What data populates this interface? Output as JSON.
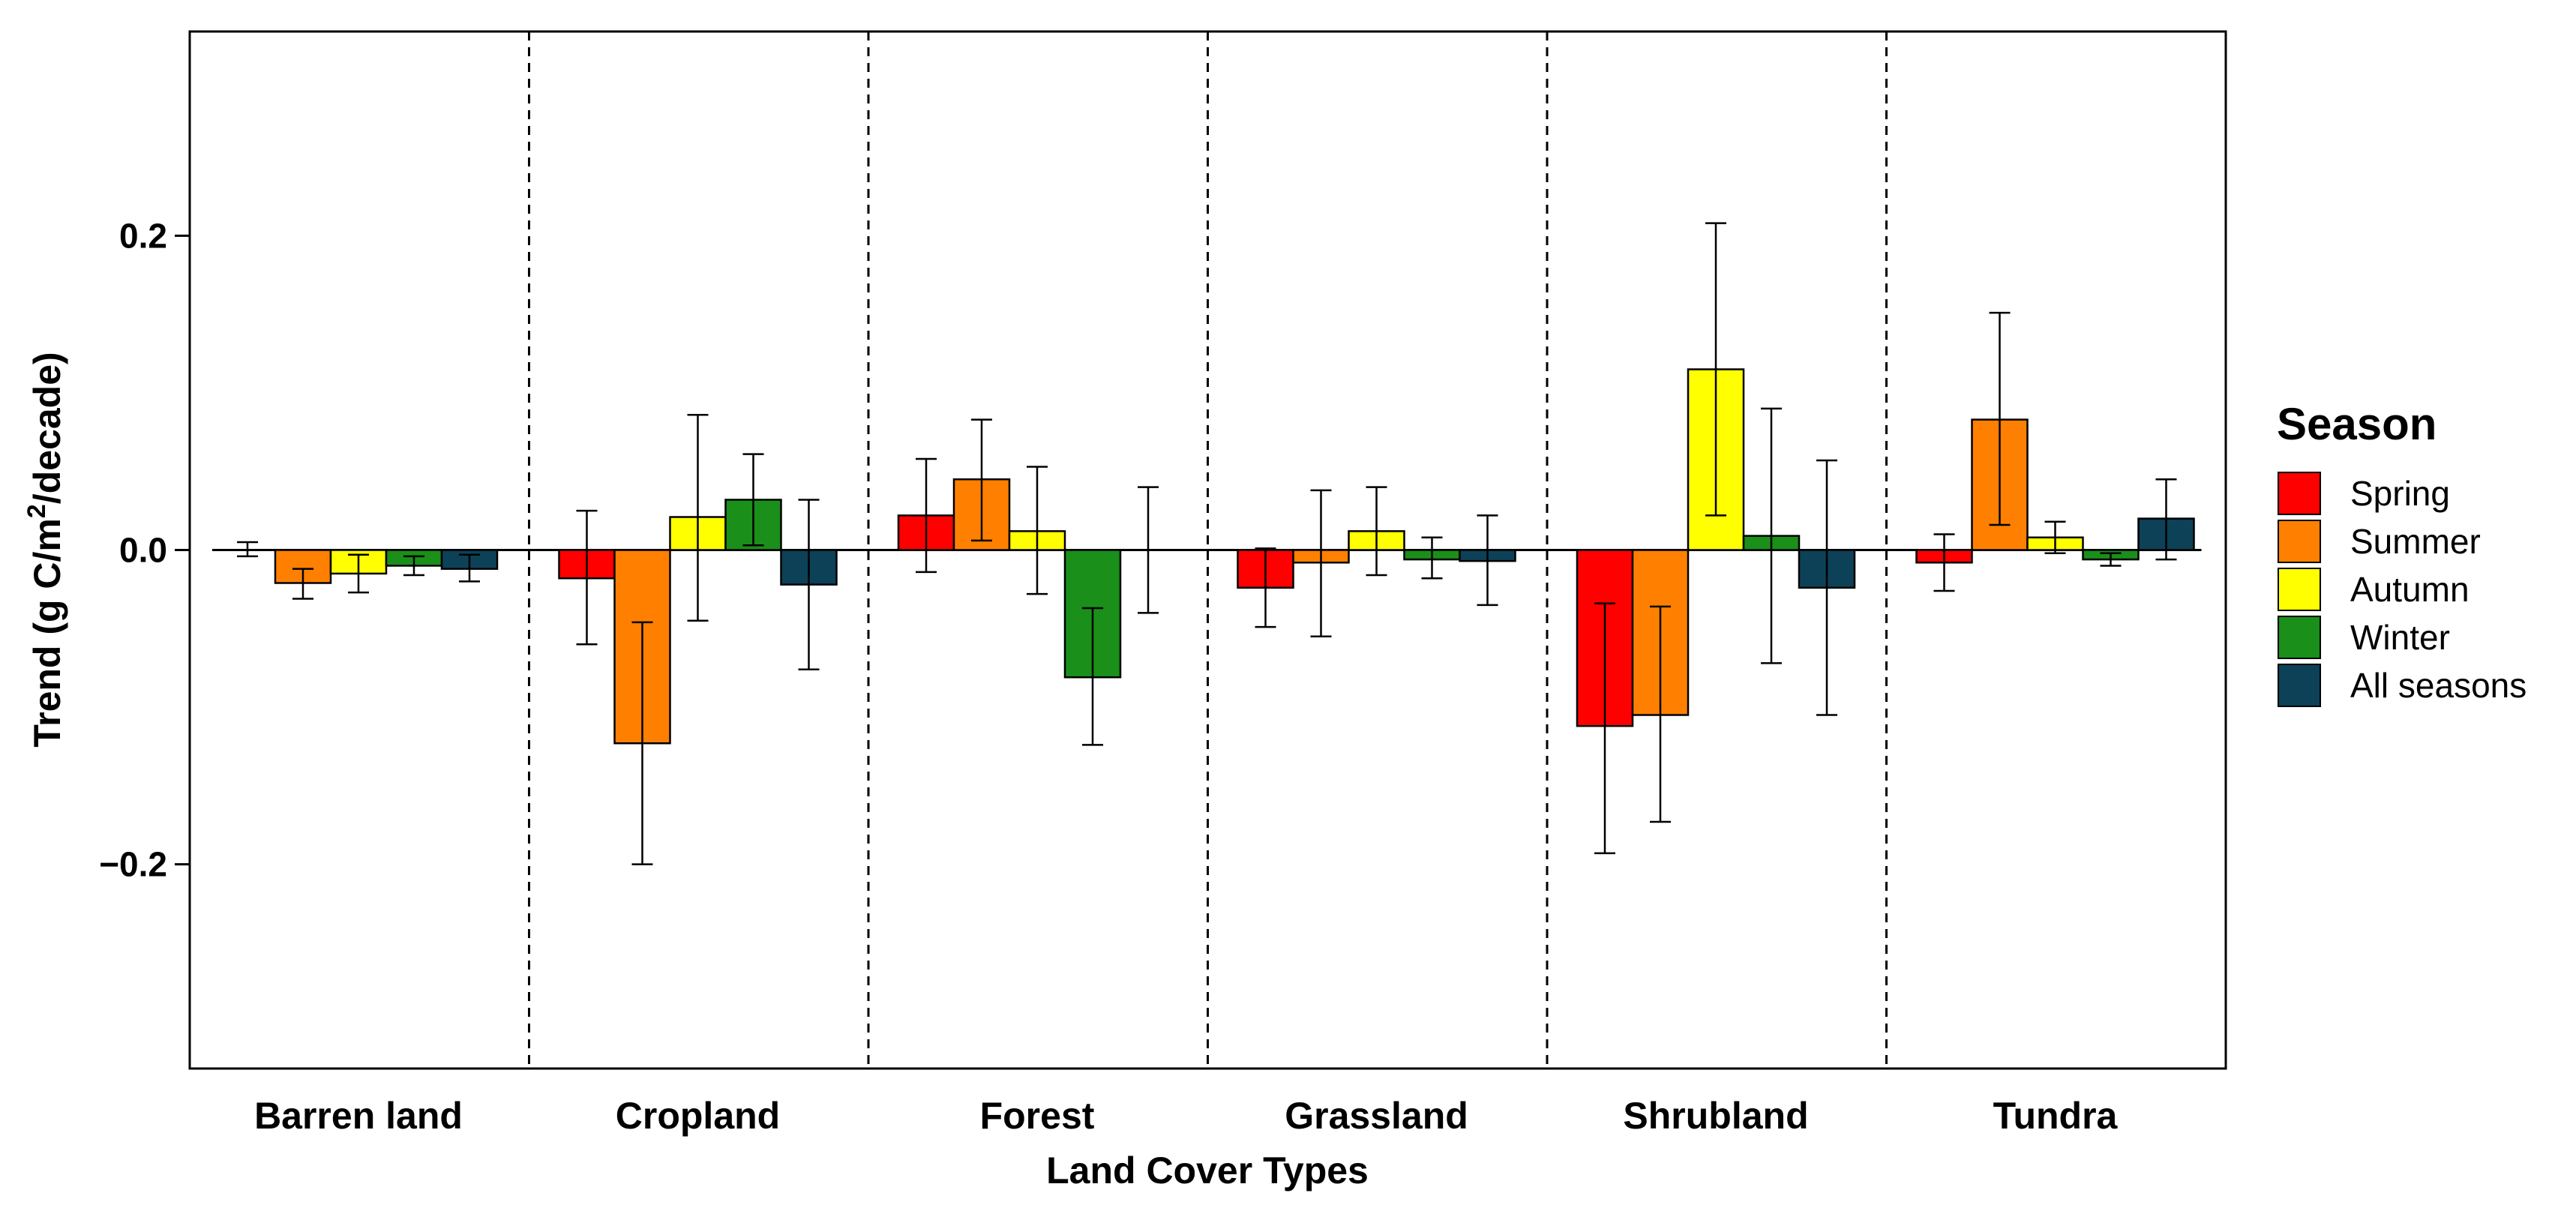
{
  "chart_data": {
    "type": "bar",
    "title": "",
    "xlabel": "Land Cover Types",
    "ylabel": "Trend (g C/m2/decade)",
    "ylabel_parts": {
      "main": "Trend (g C/m",
      "sup": "2",
      "tail": "/decade)"
    },
    "ylim": [
      -0.33,
      0.33
    ],
    "yticks": [
      -0.2,
      0.0,
      0.2
    ],
    "ytick_labels": [
      "−0.2",
      "0.0",
      "0.2"
    ],
    "categories": [
      "Barren land",
      "Cropland",
      "Forest",
      "Grassland",
      "Shrubland",
      "Tundra"
    ],
    "legend_title": "Season",
    "legend_position": "right",
    "series": [
      {
        "name": "Spring",
        "color": "#ff0000",
        "values": [
          0.0,
          -0.018,
          0.022,
          -0.024,
          -0.112,
          -0.008
        ],
        "err_low": [
          -0.004,
          -0.06,
          -0.014,
          -0.049,
          -0.193,
          -0.026
        ],
        "err_high": [
          0.005,
          0.025,
          0.058,
          0.001,
          -0.034,
          0.01
        ]
      },
      {
        "name": "Summer",
        "color": "#ff8000",
        "values": [
          -0.021,
          -0.123,
          0.045,
          -0.008,
          -0.105,
          0.083
        ],
        "err_low": [
          -0.031,
          -0.2,
          0.006,
          -0.055,
          -0.173,
          0.016
        ],
        "err_high": [
          -0.012,
          -0.046,
          0.083,
          0.038,
          -0.036,
          0.151
        ]
      },
      {
        "name": "Autumn",
        "color": "#ffff00",
        "values": [
          -0.015,
          0.021,
          0.012,
          0.012,
          0.115,
          0.008
        ],
        "err_low": [
          -0.027,
          -0.045,
          -0.028,
          -0.016,
          0.022,
          -0.002
        ],
        "err_high": [
          -0.003,
          0.086,
          0.053,
          0.04,
          0.208,
          0.018
        ]
      },
      {
        "name": "Winter",
        "color": "#1a8f1a",
        "values": [
          -0.01,
          0.032,
          -0.081,
          -0.006,
          0.009,
          -0.006
        ],
        "err_low": [
          -0.016,
          0.003,
          -0.124,
          -0.018,
          -0.072,
          -0.01
        ],
        "err_high": [
          -0.004,
          0.061,
          -0.037,
          0.008,
          0.09,
          -0.002
        ]
      },
      {
        "name": "All seasons",
        "color": "#0d4157",
        "values": [
          -0.012,
          -0.022,
          0.0,
          -0.007,
          -0.024,
          0.02
        ],
        "err_low": [
          -0.02,
          -0.076,
          -0.04,
          -0.035,
          -0.105,
          -0.006
        ],
        "err_high": [
          -0.003,
          0.032,
          0.04,
          0.022,
          0.057,
          0.045
        ]
      }
    ]
  }
}
